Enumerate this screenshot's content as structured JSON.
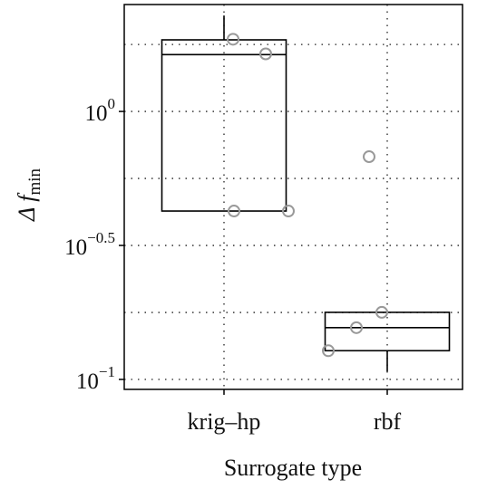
{
  "chart_data": {
    "type": "box",
    "xlabel": "Surrogate type",
    "ylabel": "Δ f",
    "ylabel_sub": "min",
    "log_y": true,
    "categories": [
      "krig–hp",
      "rbf"
    ],
    "boxes": [
      {
        "whisker_low": 0.425,
        "q1": 0.425,
        "median": 1.63,
        "q3": 1.85,
        "whisker_high": 2.28
      },
      {
        "whisker_low": 0.107,
        "q1": 0.128,
        "median": 0.156,
        "q3": 0.178,
        "whisker_high": 0.178
      }
    ],
    "points": [
      [
        1.86,
        1.64,
        0.425,
        0.425
      ],
      [
        0.678,
        0.178,
        0.156,
        0.128
      ]
    ],
    "ylim": [
      0.0918,
      2.506
    ],
    "yticks": [
      {
        "value": 1,
        "label": "10",
        "exponent": "0"
      },
      {
        "value": 0.3162,
        "label": "10",
        "exponent": "−0.5"
      },
      {
        "value": 0.1,
        "label": "10",
        "exponent": "−1"
      }
    ],
    "grid_lines": [
      0.1778,
      0.5623,
      1.778
    ],
    "grid": true,
    "box_color": "#000000",
    "point_color": "#999999"
  }
}
